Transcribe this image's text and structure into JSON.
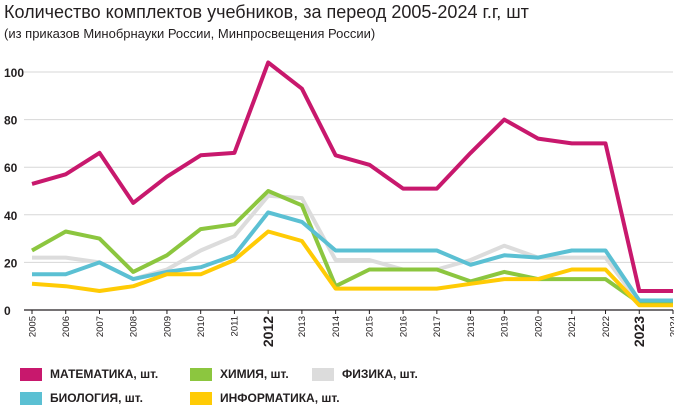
{
  "title": "Количество комплектов учебников, за переод  2005-2024 г.г, шт",
  "subtitle": "(из приказов Минобрнауки России, Минпросвещения России)",
  "chart_data": {
    "type": "line",
    "x": [
      "2005",
      "2006",
      "2007",
      "2008",
      "2009",
      "2010",
      "2011",
      "2012",
      "2013",
      "2014",
      "2015",
      "2016",
      "2017",
      "2018",
      "2019",
      "2020",
      "2021",
      "2022",
      "2023",
      "2024"
    ],
    "bold_x": [
      "2012",
      "2023"
    ],
    "y_ticks": [
      "100",
      "80",
      "60",
      "40",
      "20",
      "0"
    ],
    "ylim": [
      0,
      100
    ],
    "grid": "horizontal",
    "legend_position": "bottom",
    "series": [
      {
        "name": "ФИЗИКА, шт.",
        "color": "#dcdcdc",
        "values": [
          22,
          22,
          20,
          13,
          17,
          25,
          31,
          48,
          47,
          21,
          21,
          17,
          17,
          21,
          27,
          22,
          22,
          22,
          3,
          3
        ]
      },
      {
        "name": "ХИМИЯ, шт.",
        "color": "#8cc63f",
        "values": [
          25,
          33,
          30,
          16,
          23,
          34,
          36,
          50,
          44,
          10,
          17,
          17,
          17,
          12,
          16,
          13,
          13,
          13,
          3,
          3
        ]
      },
      {
        "name": "БИОЛОГИЯ, шт.",
        "color": "#5bc0d3",
        "values": [
          15,
          15,
          20,
          13,
          16,
          18,
          23,
          41,
          37,
          25,
          25,
          25,
          25,
          19,
          23,
          22,
          25,
          25,
          4,
          4
        ]
      },
      {
        "name": "ИНФОРМАТИКА, шт.",
        "color": "#ffcb05",
        "values": [
          11,
          10,
          8,
          10,
          15,
          15,
          21,
          33,
          29,
          9,
          9,
          9,
          9,
          11,
          13,
          13,
          17,
          17,
          2,
          2
        ]
      },
      {
        "name": "МАТЕМАТИКА, шт.",
        "color": "#c8186d",
        "values": [
          53,
          57,
          66,
          45,
          56,
          65,
          66,
          104,
          93,
          65,
          61,
          51,
          51,
          66,
          80,
          72,
          70,
          70,
          8,
          8
        ]
      }
    ]
  }
}
